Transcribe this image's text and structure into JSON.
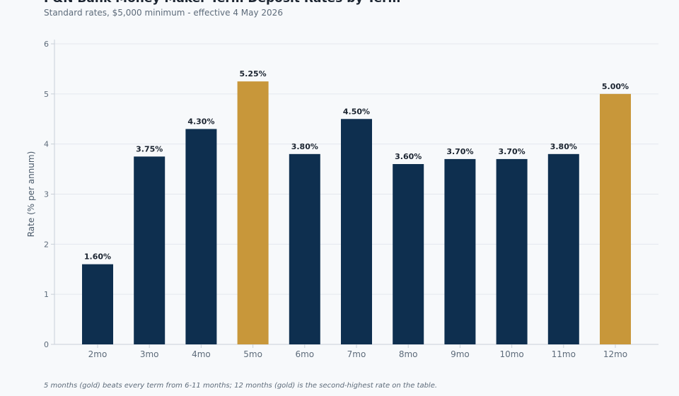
{
  "chart_data": {
    "type": "bar",
    "title": "P&N Bank Money Maker Term Deposit Rates by Term",
    "subtitle": "Standard rates, $5,000 minimum - effective 4 May 2026",
    "ylabel": "Rate (% per annum)",
    "xlabel": "",
    "ylim": [
      0,
      6
    ],
    "yticks": [
      0,
      1,
      2,
      3,
      4,
      5,
      6
    ],
    "grid": true,
    "categories": [
      "2mo",
      "3mo",
      "4mo",
      "5mo",
      "6mo",
      "7mo",
      "8mo",
      "9mo",
      "10mo",
      "11mo",
      "12mo"
    ],
    "values": [
      1.6,
      3.75,
      4.3,
      5.25,
      3.8,
      4.5,
      3.6,
      3.7,
      3.7,
      3.8,
      5.0
    ],
    "data_labels": [
      "1.60%",
      "3.75%",
      "4.30%",
      "5.25%",
      "3.80%",
      "4.50%",
      "3.60%",
      "3.70%",
      "3.70%",
      "3.80%",
      "5.00%"
    ],
    "highlighted": [
      false,
      false,
      false,
      true,
      false,
      false,
      false,
      false,
      false,
      false,
      true
    ],
    "colors": {
      "default": "#0e2f4f",
      "highlight": "#c8973a",
      "grid": "#e4e8ee",
      "axis": "#c9d0d8"
    },
    "footnote": "5 months (gold) beats every term from 6-11 months; 12 months (gold) is the second-highest rate on the table."
  }
}
